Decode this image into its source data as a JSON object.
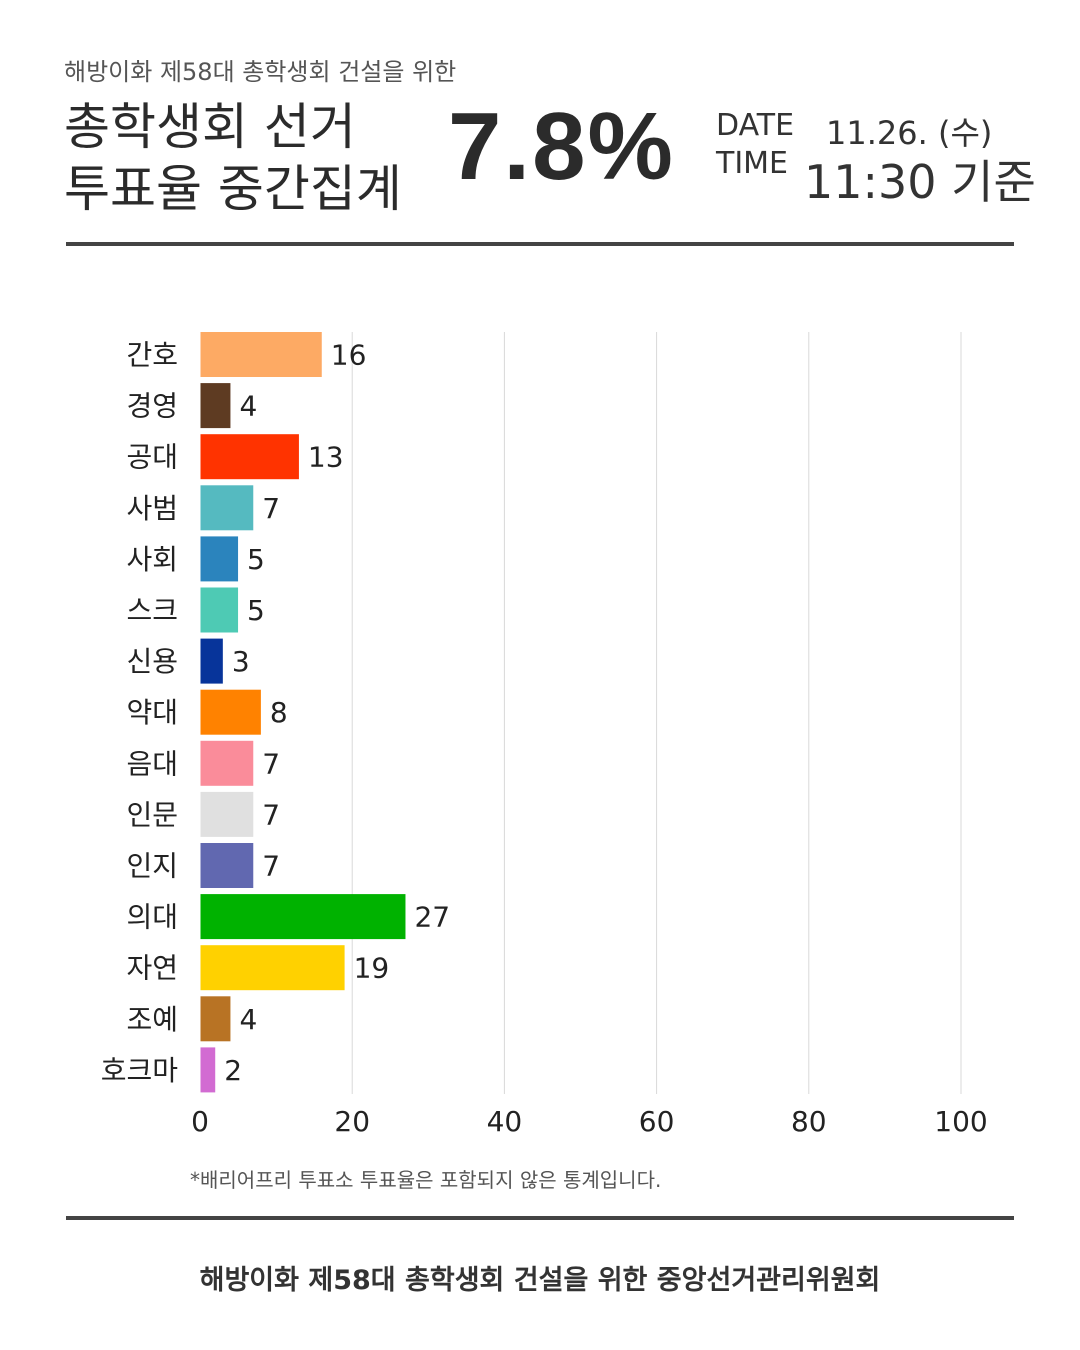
{
  "header": {
    "subtitle": "해방이화 제58대 총학생회 건설을 위한",
    "title_line1": "총학생회 선거",
    "title_line2": "투표율 중간집계",
    "turnout": "7.8%",
    "date_label": "DATE",
    "date_value": "11.26. (수)",
    "time_label": "TIME",
    "time_value": "11:30 기준"
  },
  "chart_data": {
    "type": "bar",
    "orientation": "horizontal",
    "categories": [
      "간호",
      "경영",
      "공대",
      "사범",
      "사회",
      "스크",
      "신용",
      "약대",
      "음대",
      "인문",
      "인지",
      "의대",
      "자연",
      "조예",
      "호크마"
    ],
    "values": [
      16,
      4,
      13,
      7,
      5,
      5,
      3,
      8,
      7,
      7,
      7,
      27,
      19,
      4,
      2
    ],
    "colors": [
      "#FDAA64",
      "#5E3B22",
      "#FF3300",
      "#55BAC0",
      "#2B84BD",
      "#4ECAB4",
      "#07349A",
      "#FF8200",
      "#FA8C9A",
      "#E0E0E0",
      "#6168B0",
      "#00B200",
      "#FFD100",
      "#B87324",
      "#D26BD2"
    ],
    "xlim": [
      0,
      100
    ],
    "xticks": [
      "0",
      "20",
      "40",
      "60",
      "80",
      "100"
    ],
    "grid": true
  },
  "footnote": "*배리어프리 투표소 투표율은 포함되지 않은 통계입니다.",
  "organization": "해방이화 제58대 총학생회 건설을 위한 중앙선거관리위원회"
}
